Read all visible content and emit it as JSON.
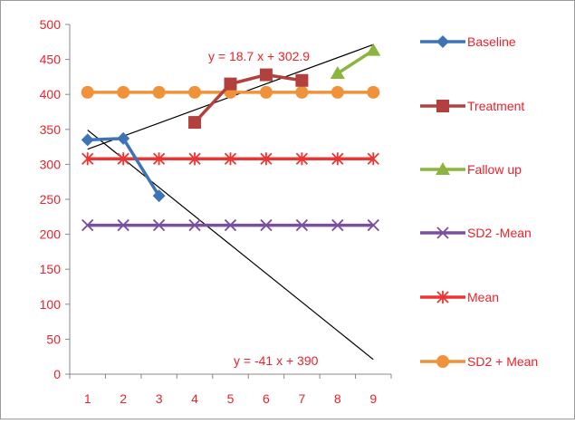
{
  "chart_data": {
    "type": "line",
    "title": "",
    "xlabel": "",
    "ylabel": "",
    "x": [
      1,
      2,
      3,
      4,
      5,
      6,
      7,
      8,
      9
    ],
    "xlim": [
      0.5,
      9.5
    ],
    "ylim": [
      0,
      500
    ],
    "yticks": [
      0,
      50,
      100,
      150,
      200,
      250,
      300,
      350,
      400,
      450,
      500
    ],
    "grid": false,
    "legend_position": "right",
    "series": [
      {
        "name": "Baseline",
        "color": "#3e73b6",
        "marker": "diamond",
        "points": [
          [
            1,
            335
          ],
          [
            2,
            337
          ],
          [
            3,
            255
          ]
        ]
      },
      {
        "name": "Treatment",
        "color": "#b2403e",
        "marker": "square",
        "points": [
          [
            4,
            360
          ],
          [
            5,
            415
          ],
          [
            6,
            428
          ],
          [
            7,
            420
          ]
        ]
      },
      {
        "name": "Fallow up",
        "color": "#8bb53f",
        "marker": "triangle",
        "points": [
          [
            8,
            430
          ],
          [
            9,
            463
          ]
        ]
      },
      {
        "name": "SD2  -Mean",
        "color": "#7a4fa0",
        "marker": "x",
        "points": [
          [
            1,
            213
          ],
          [
            2,
            213
          ],
          [
            3,
            213
          ],
          [
            4,
            213
          ],
          [
            5,
            213
          ],
          [
            6,
            213
          ],
          [
            7,
            213
          ],
          [
            8,
            213
          ],
          [
            9,
            213
          ]
        ]
      },
      {
        "name": "Mean",
        "color": "#ee3333",
        "marker": "star",
        "points": [
          [
            1,
            308
          ],
          [
            2,
            308
          ],
          [
            3,
            308
          ],
          [
            4,
            308
          ],
          [
            5,
            308
          ],
          [
            6,
            308
          ],
          [
            7,
            308
          ],
          [
            8,
            308
          ],
          [
            9,
            308
          ]
        ]
      },
      {
        "name": "SD2 + Mean",
        "color": "#f0923a",
        "marker": "circle",
        "points": [
          [
            1,
            403
          ],
          [
            2,
            403
          ],
          [
            3,
            403
          ],
          [
            4,
            403
          ],
          [
            5,
            403
          ],
          [
            6,
            403
          ],
          [
            7,
            403
          ],
          [
            8,
            403
          ],
          [
            9,
            403
          ]
        ]
      }
    ],
    "trendlines": [
      {
        "label": "y = 18.7 x + 302.9",
        "color": "#000000",
        "x": [
          1,
          9
        ]
      },
      {
        "label": "y = -41 x + 390",
        "color": "#000000",
        "x": [
          1,
          9
        ]
      }
    ]
  }
}
